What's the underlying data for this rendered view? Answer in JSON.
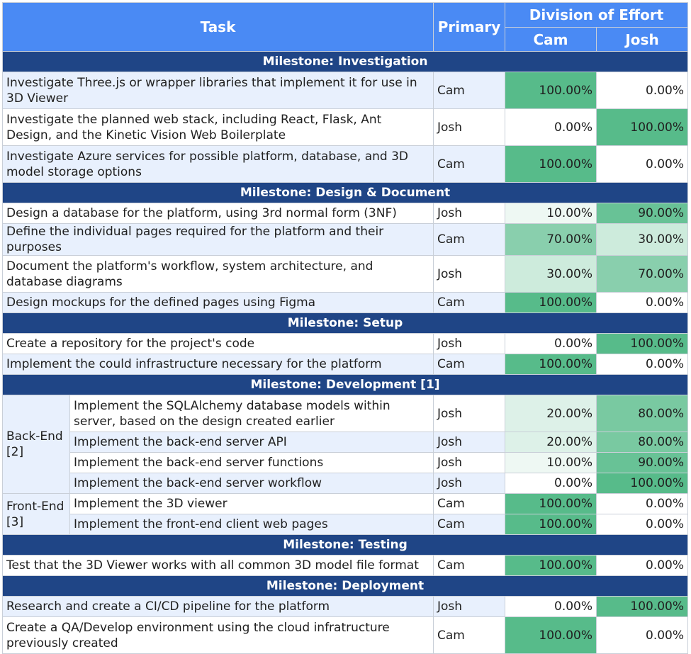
{
  "header": {
    "task": "Task",
    "primary": "Primary",
    "division": "Division of Effort",
    "cam": "Cam",
    "josh": "Josh"
  },
  "colors": {
    "header_bg": "#4a8af4",
    "milestone_bg": "#1f4586",
    "band_bg": "#e8f0fd",
    "effort_max": "#57bb8a",
    "effort_min": "#ffffff"
  },
  "milestones": [
    {
      "title": "Milestone: Investigation",
      "rows": [
        {
          "task": "Investigate Three.js or wrapper libraries that implement it for use in 3D Viewer",
          "primary": "Cam",
          "cam": 100,
          "josh": 0,
          "cam_label": "100.00%",
          "josh_label": "0.00%"
        },
        {
          "task": "Investigate the planned web stack, including React, Flask, Ant Design, and the Kinetic Vision Web Boilerplate",
          "primary": "Josh",
          "cam": 0,
          "josh": 100,
          "cam_label": "0.00%",
          "josh_label": "100.00%"
        },
        {
          "task": "Investigate Azure services for possible platform, database, and 3D model storage options",
          "primary": "Cam",
          "cam": 100,
          "josh": 0,
          "cam_label": "100.00%",
          "josh_label": "0.00%"
        }
      ]
    },
    {
      "title": "Milestone: Design & Document",
      "rows": [
        {
          "task": "Design a database for the platform, using 3rd normal form (3NF)",
          "primary": "Josh",
          "cam": 10,
          "josh": 90,
          "cam_label": "10.00%",
          "josh_label": "90.00%"
        },
        {
          "task": "Define the individual pages required for the platform and their purposes",
          "primary": "Cam",
          "cam": 70,
          "josh": 30,
          "cam_label": "70.00%",
          "josh_label": "30.00%"
        },
        {
          "task": "Document the platform's workflow, system architecture, and database diagrams",
          "primary": "Josh",
          "cam": 30,
          "josh": 70,
          "cam_label": "30.00%",
          "josh_label": "70.00%"
        },
        {
          "task": "Design mockups for the defined pages using Figma",
          "primary": "Cam",
          "cam": 100,
          "josh": 0,
          "cam_label": "100.00%",
          "josh_label": "0.00%"
        }
      ]
    },
    {
      "title": "Milestone: Setup",
      "rows": [
        {
          "task": "Create a repository for the project's code",
          "primary": "Josh",
          "cam": 0,
          "josh": 100,
          "cam_label": "0.00%",
          "josh_label": "100.00%"
        },
        {
          "task": "Implement the could infrastructure necessary for the platform",
          "primary": "Cam",
          "cam": 100,
          "josh": 0,
          "cam_label": "100.00%",
          "josh_label": "0.00%"
        }
      ]
    },
    {
      "title": "Milestone: Development [1]",
      "groups": [
        {
          "label": "Back-End [2]",
          "rows": [
            {
              "task": "Implement the SQLAlchemy database models within server, based on the design created earlier",
              "primary": "Josh",
              "cam": 20,
              "josh": 80,
              "cam_label": "20.00%",
              "josh_label": "80.00%"
            },
            {
              "task": "Implement the back-end server API",
              "primary": "Josh",
              "cam": 20,
              "josh": 80,
              "cam_label": "20.00%",
              "josh_label": "80.00%"
            },
            {
              "task": "Implement the back-end server functions",
              "primary": "Josh",
              "cam": 10,
              "josh": 90,
              "cam_label": "10.00%",
              "josh_label": "90.00%"
            },
            {
              "task": "Implement the back-end server workflow",
              "primary": "Josh",
              "cam": 0,
              "josh": 100,
              "cam_label": "0.00%",
              "josh_label": "100.00%"
            }
          ]
        },
        {
          "label": "Front-End [3]",
          "rows": [
            {
              "task": "Implement the 3D viewer",
              "primary": "Cam",
              "cam": 100,
              "josh": 0,
              "cam_label": "100.00%",
              "josh_label": "0.00%"
            },
            {
              "task": "Implement the front-end client web pages",
              "primary": "Cam",
              "cam": 100,
              "josh": 0,
              "cam_label": "100.00%",
              "josh_label": "0.00%"
            }
          ]
        }
      ]
    },
    {
      "title": "Milestone: Testing",
      "rows": [
        {
          "task": "Test that the 3D Viewer works with all common 3D model file format",
          "primary": "Cam",
          "cam": 100,
          "josh": 0,
          "cam_label": "100.00%",
          "josh_label": "0.00%"
        }
      ]
    },
    {
      "title": "Milestone: Deployment",
      "rows": [
        {
          "task": "Research and create a CI/CD pipeline for the platform",
          "primary": "Josh",
          "cam": 0,
          "josh": 100,
          "cam_label": "0.00%",
          "josh_label": "100.00%"
        },
        {
          "task": "Create a QA/Develop environment using the cloud infratructure previously created",
          "primary": "Cam",
          "cam": 100,
          "josh": 0,
          "cam_label": "100.00%",
          "josh_label": "0.00%"
        }
      ]
    }
  ]
}
